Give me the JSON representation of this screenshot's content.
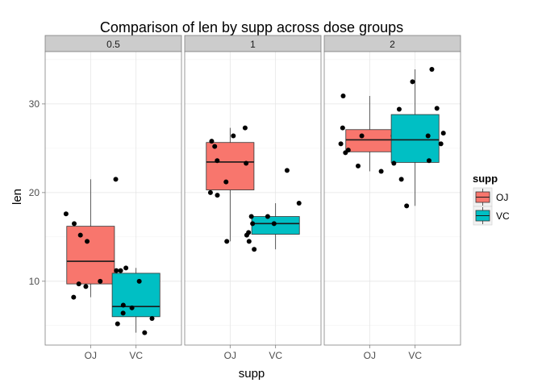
{
  "chart_data": {
    "type": "boxplot",
    "title": "Comparison of len by supp across dose groups",
    "xlabel": "supp",
    "ylabel": "len",
    "ylim": [
      2.8,
      35.9
    ],
    "yticks": [
      10,
      20,
      30
    ],
    "grid": true,
    "facet_labels": [
      "0.5",
      "1",
      "2"
    ],
    "categories": [
      "OJ",
      "VC"
    ],
    "legend": {
      "title": "supp",
      "position": "right",
      "entries": [
        {
          "label": "OJ",
          "color": "#F8766D"
        },
        {
          "label": "VC",
          "color": "#00BFC4"
        }
      ]
    },
    "panels": [
      {
        "facet": "0.5",
        "boxes": [
          {
            "supp": "OJ",
            "min": 8.2,
            "q1": 9.7,
            "median": 12.25,
            "q3": 16.2,
            "max": 21.5,
            "points": [
              21.5,
              15.2,
              14.5,
              10.0,
              9.4,
              9.7,
              8.2,
              9.7,
              16.5,
              17.6
            ]
          },
          {
            "supp": "VC",
            "min": 4.2,
            "q1": 6.0,
            "median": 7.15,
            "q3": 10.9,
            "max": 11.5,
            "points": [
              4.2,
              11.5,
              7.3,
              5.8,
              6.4,
              10.0,
              11.2,
              11.2,
              5.2,
              7.0
            ]
          }
        ]
      },
      {
        "facet": "1",
        "boxes": [
          {
            "supp": "OJ",
            "min": 14.5,
            "q1": 20.3,
            "median": 23.45,
            "q3": 25.65,
            "max": 27.3,
            "points": [
              19.7,
              23.3,
              23.6,
              26.4,
              20.0,
              25.2,
              25.8,
              21.2,
              14.5,
              27.3
            ]
          },
          {
            "supp": "VC",
            "min": 13.6,
            "q1": 15.3,
            "median": 16.5,
            "q3": 17.3,
            "max": 18.8,
            "points": [
              16.5,
              16.5,
              15.2,
              17.3,
              22.5,
              17.3,
              13.6,
              14.5,
              18.8,
              15.5
            ]
          }
        ]
      },
      {
        "facet": "2",
        "boxes": [
          {
            "supp": "OJ",
            "min": 22.4,
            "q1": 24.6,
            "median": 25.95,
            "q3": 27.1,
            "max": 30.9,
            "points": [
              25.5,
              26.4,
              22.4,
              24.5,
              24.8,
              30.9,
              26.4,
              27.3,
              29.4,
              23.0
            ]
          },
          {
            "supp": "VC",
            "min": 18.5,
            "q1": 23.4,
            "median": 25.95,
            "q3": 28.8,
            "max": 33.9,
            "points": [
              23.6,
              18.5,
              33.9,
              25.5,
              26.4,
              32.5,
              26.7,
              21.5,
              23.3,
              29.5
            ]
          }
        ]
      }
    ]
  }
}
